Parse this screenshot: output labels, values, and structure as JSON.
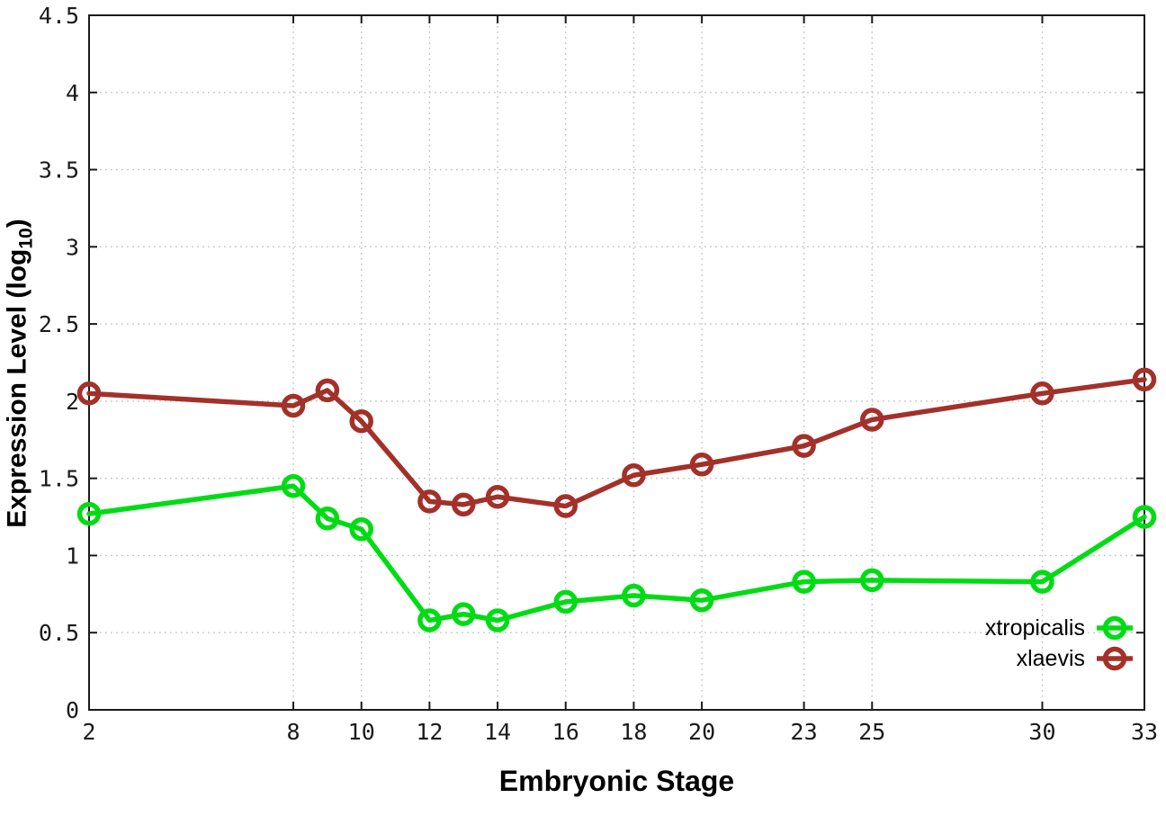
{
  "chart_data": {
    "type": "line",
    "title": "",
    "xlabel": "Embryonic Stage",
    "ylabel": "Expression Level (log10)",
    "ylabel_parts": {
      "prefix": "Expression Level (log",
      "sub": "10",
      "suffix": ")"
    },
    "x": [
      2,
      8,
      9,
      10,
      12,
      13,
      14,
      16,
      18,
      20,
      23,
      25,
      30,
      33
    ],
    "series": [
      {
        "name": "xtropicalis",
        "color": "#00dc14",
        "values": [
          1.27,
          1.45,
          1.24,
          1.17,
          0.58,
          0.62,
          0.58,
          0.7,
          0.74,
          0.71,
          0.83,
          0.84,
          0.83,
          1.25
        ]
      },
      {
        "name": "xlaevis",
        "color": "#a4302a",
        "values": [
          2.05,
          1.97,
          2.07,
          1.87,
          1.35,
          1.33,
          1.38,
          1.32,
          1.52,
          1.59,
          1.71,
          1.88,
          2.05,
          2.14
        ]
      }
    ],
    "xlim": [
      2,
      33
    ],
    "ylim": [
      0,
      4.5
    ],
    "xtick_labels": [
      "2",
      "8",
      "10",
      "12",
      "14",
      "16",
      "18",
      "20",
      "23",
      "25",
      "30",
      "33"
    ],
    "xtick_values": [
      2,
      8,
      10,
      12,
      14,
      16,
      18,
      20,
      23,
      25,
      30,
      33
    ],
    "ytick_labels": [
      "0",
      "0.5",
      "1",
      "1.5",
      "2",
      "2.5",
      "3",
      "3.5",
      "4",
      "4.5"
    ],
    "ytick_values": [
      0,
      0.5,
      1,
      1.5,
      2,
      2.5,
      3,
      3.5,
      4,
      4.5
    ],
    "grid": true,
    "grid_style": "dotted",
    "legend_position": "bottom-right-inside",
    "axis_color": "#1a1a1a",
    "grid_color": "#c4c4c4"
  }
}
